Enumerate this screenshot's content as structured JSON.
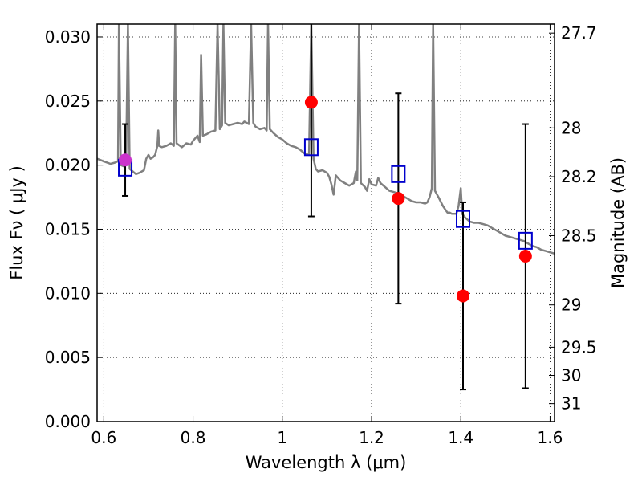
{
  "chart_data": {
    "type": "scatter",
    "xlabel": "Wavelength  λ (μm)",
    "ylabel": "Flux  Fν  ( μJy )",
    "ylabel_right": "Magnitude (AB)",
    "xlim": [
      0.585,
      1.61
    ],
    "ylim": [
      0.0,
      0.031
    ],
    "x_ticks": [
      0.6,
      0.8,
      1.0,
      1.2,
      1.4,
      1.6
    ],
    "x_tick_labels": [
      "0.6",
      "0.8",
      "1",
      "1.2",
      "1.4",
      "1.6"
    ],
    "y_ticks": [
      0.0,
      0.005,
      0.01,
      0.015,
      0.02,
      0.025,
      0.03
    ],
    "y_tick_labels": [
      "0.000",
      "0.005",
      "0.010",
      "0.015",
      "0.020",
      "0.025",
      "0.030"
    ],
    "right_ticks": [
      {
        "label": "27.7",
        "flux": 0.0303
      },
      {
        "label": "28",
        "flux": 0.0229
      },
      {
        "label": "28.2",
        "flux": 0.0191
      },
      {
        "label": "28.5",
        "flux": 0.0145
      },
      {
        "label": "29",
        "flux": 0.0091
      },
      {
        "label": "29.5",
        "flux": 0.0058
      },
      {
        "label": "30",
        "flux": 0.0036
      },
      {
        "label": "31",
        "flux": 0.0014
      }
    ],
    "grid": true,
    "colors": {
      "model": "#808080",
      "observed": "#ff0000",
      "first_point": "#cc33cc",
      "synthetic": "#0000cc",
      "errorbar": "#000000"
    },
    "series": [
      {
        "kind": "line",
        "points": [
          [
            0.585,
            0.0205
          ],
          [
            0.6,
            0.0203
          ],
          [
            0.615,
            0.0201
          ],
          [
            0.625,
            0.0202
          ],
          [
            0.632,
            0.0203
          ],
          [
            0.634,
            0.031
          ],
          [
            0.638,
            0.02
          ],
          [
            0.645,
            0.0199
          ],
          [
            0.65,
            0.02
          ],
          [
            0.654,
            0.031
          ],
          [
            0.658,
            0.0197
          ],
          [
            0.665,
            0.0195
          ],
          [
            0.672,
            0.0193
          ],
          [
            0.68,
            0.0194
          ],
          [
            0.69,
            0.0196
          ],
          [
            0.695,
            0.0205
          ],
          [
            0.7,
            0.0208
          ],
          [
            0.705,
            0.0205
          ],
          [
            0.71,
            0.0206
          ],
          [
            0.715,
            0.0208
          ],
          [
            0.72,
            0.0215
          ],
          [
            0.722,
            0.0227
          ],
          [
            0.724,
            0.0215
          ],
          [
            0.73,
            0.0214
          ],
          [
            0.74,
            0.0215
          ],
          [
            0.75,
            0.0217
          ],
          [
            0.757,
            0.0215
          ],
          [
            0.76,
            0.031
          ],
          [
            0.763,
            0.0217
          ],
          [
            0.775,
            0.0214
          ],
          [
            0.785,
            0.0217
          ],
          [
            0.795,
            0.0216
          ],
          [
            0.8,
            0.0219
          ],
          [
            0.81,
            0.0223
          ],
          [
            0.815,
            0.0218
          ],
          [
            0.818,
            0.0286
          ],
          [
            0.822,
            0.0223
          ],
          [
            0.83,
            0.0224
          ],
          [
            0.84,
            0.0226
          ],
          [
            0.85,
            0.0227
          ],
          [
            0.855,
            0.031
          ],
          [
            0.86,
            0.0228
          ],
          [
            0.865,
            0.0231
          ],
          [
            0.868,
            0.031
          ],
          [
            0.872,
            0.0233
          ],
          [
            0.88,
            0.0231
          ],
          [
            0.89,
            0.0232
          ],
          [
            0.9,
            0.0233
          ],
          [
            0.91,
            0.0232
          ],
          [
            0.915,
            0.0234
          ],
          [
            0.925,
            0.0232
          ],
          [
            0.93,
            0.031
          ],
          [
            0.935,
            0.0233
          ],
          [
            0.94,
            0.023
          ],
          [
            0.95,
            0.0228
          ],
          [
            0.96,
            0.0229
          ],
          [
            0.965,
            0.0227
          ],
          [
            0.968,
            0.031
          ],
          [
            0.972,
            0.0228
          ],
          [
            0.98,
            0.0225
          ],
          [
            0.99,
            0.0222
          ],
          [
            1.0,
            0.022
          ],
          [
            1.01,
            0.0217
          ],
          [
            1.02,
            0.0215
          ],
          [
            1.03,
            0.0214
          ],
          [
            1.04,
            0.0212
          ],
          [
            1.05,
            0.0209
          ],
          [
            1.06,
            0.0208
          ],
          [
            1.065,
            0.031
          ],
          [
            1.07,
            0.0205
          ],
          [
            1.075,
            0.0197
          ],
          [
            1.08,
            0.0195
          ],
          [
            1.09,
            0.0196
          ],
          [
            1.1,
            0.0194
          ],
          [
            1.105,
            0.0191
          ],
          [
            1.11,
            0.0185
          ],
          [
            1.115,
            0.0177
          ],
          [
            1.12,
            0.0192
          ],
          [
            1.13,
            0.0188
          ],
          [
            1.14,
            0.0186
          ],
          [
            1.15,
            0.0184
          ],
          [
            1.16,
            0.0186
          ],
          [
            1.165,
            0.0195
          ],
          [
            1.168,
            0.0188
          ],
          [
            1.172,
            0.031
          ],
          [
            1.176,
            0.0186
          ],
          [
            1.185,
            0.0183
          ],
          [
            1.19,
            0.018
          ],
          [
            1.195,
            0.0189
          ],
          [
            1.2,
            0.0185
          ],
          [
            1.21,
            0.0184
          ],
          [
            1.215,
            0.019
          ],
          [
            1.22,
            0.0186
          ],
          [
            1.23,
            0.0183
          ],
          [
            1.24,
            0.018
          ],
          [
            1.25,
            0.0179
          ],
          [
            1.26,
            0.0178
          ],
          [
            1.27,
            0.0176
          ],
          [
            1.28,
            0.0174
          ],
          [
            1.29,
            0.0172
          ],
          [
            1.3,
            0.0171
          ],
          [
            1.31,
            0.0171
          ],
          [
            1.32,
            0.017
          ],
          [
            1.325,
            0.0171
          ],
          [
            1.33,
            0.0175
          ],
          [
            1.335,
            0.0182
          ],
          [
            1.338,
            0.031
          ],
          [
            1.342,
            0.018
          ],
          [
            1.35,
            0.0175
          ],
          [
            1.36,
            0.0168
          ],
          [
            1.37,
            0.0163
          ],
          [
            1.375,
            0.0163
          ],
          [
            1.38,
            0.0162
          ],
          [
            1.39,
            0.0162
          ],
          [
            1.395,
            0.0168
          ],
          [
            1.4,
            0.0182
          ],
          [
            1.403,
            0.0162
          ],
          [
            1.41,
            0.0159
          ],
          [
            1.42,
            0.0156
          ],
          [
            1.43,
            0.0155
          ],
          [
            1.44,
            0.0155
          ],
          [
            1.45,
            0.0154
          ],
          [
            1.46,
            0.0153
          ],
          [
            1.47,
            0.0151
          ],
          [
            1.48,
            0.0149
          ],
          [
            1.49,
            0.0147
          ],
          [
            1.5,
            0.0145
          ],
          [
            1.51,
            0.0144
          ],
          [
            1.52,
            0.0143
          ],
          [
            1.53,
            0.0142
          ],
          [
            1.54,
            0.0141
          ],
          [
            1.55,
            0.0139
          ],
          [
            1.56,
            0.0137
          ],
          [
            1.57,
            0.0136
          ],
          [
            1.58,
            0.0134
          ],
          [
            1.59,
            0.0133
          ],
          [
            1.6,
            0.0132
          ],
          [
            1.61,
            0.0131
          ]
        ]
      },
      {
        "kind": "observed",
        "points": [
          {
            "x": 0.648,
            "y": 0.0204,
            "err": 0.0028,
            "color": "first_point"
          },
          {
            "x": 1.065,
            "y": 0.0249,
            "err": 0.0089
          },
          {
            "x": 1.26,
            "y": 0.0174,
            "err": 0.0082
          },
          {
            "x": 1.405,
            "y": 0.0098,
            "err": 0.0073
          },
          {
            "x": 1.545,
            "y": 0.0129,
            "err": 0.0103
          }
        ]
      },
      {
        "kind": "synthetic",
        "points": [
          {
            "x": 0.648,
            "y": 0.0198
          },
          {
            "x": 1.065,
            "y": 0.0214
          },
          {
            "x": 1.26,
            "y": 0.0193
          },
          {
            "x": 1.405,
            "y": 0.0158
          },
          {
            "x": 1.545,
            "y": 0.0141
          }
        ]
      }
    ]
  }
}
